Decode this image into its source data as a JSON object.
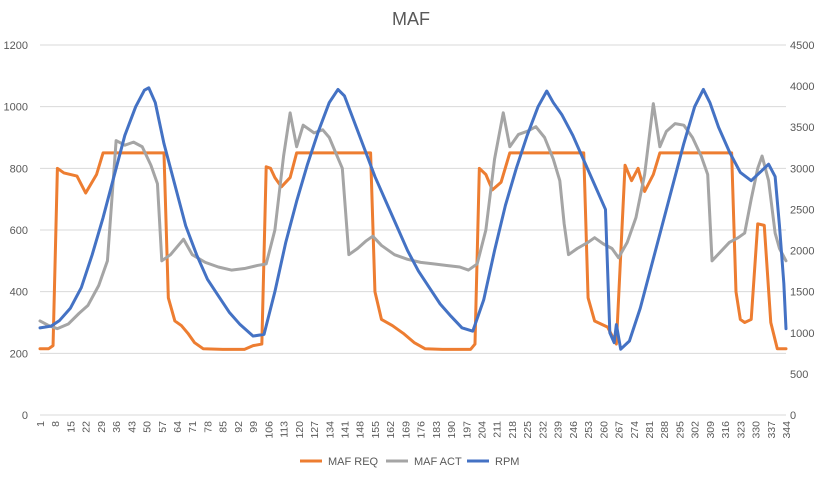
{
  "chart_data": {
    "type": "line",
    "title": "MAF",
    "xlabel": "",
    "ylabel": "",
    "y_left": {
      "lim": [
        0,
        1200
      ],
      "ticks": [
        "0",
        "200",
        "400",
        "600",
        "800",
        "1000",
        "1200"
      ]
    },
    "y_right": {
      "lim": [
        0,
        4500
      ],
      "ticks": [
        "0",
        "500",
        "1000",
        "1500",
        "2000",
        "2500",
        "3000",
        "3500",
        "4000",
        "4500"
      ]
    },
    "x": {
      "lim": [
        1,
        344
      ],
      "step": 7,
      "tick_labels": [
        "1",
        "8",
        "15",
        "22",
        "29",
        "36",
        "43",
        "50",
        "57",
        "64",
        "71",
        "78",
        "85",
        "92",
        "99",
        "106",
        "113",
        "120",
        "127",
        "134",
        "141",
        "148",
        "155",
        "162",
        "169",
        "176",
        "183",
        "190",
        "197",
        "204",
        "211",
        "218",
        "225",
        "232",
        "239",
        "246",
        "253",
        "260",
        "267",
        "274",
        "281",
        "288",
        "295",
        "302",
        "309",
        "316",
        "323",
        "330",
        "337",
        "344"
      ]
    },
    "grid": "horizontal",
    "legend_position": "bottom",
    "series": [
      {
        "name": "MAF REQ",
        "axis": "left",
        "color": "#ED7D31",
        "points": [
          [
            1,
            215
          ],
          [
            5,
            215
          ],
          [
            7,
            225
          ],
          [
            9,
            800
          ],
          [
            12,
            785
          ],
          [
            18,
            775
          ],
          [
            22,
            720
          ],
          [
            27,
            780
          ],
          [
            30,
            850
          ],
          [
            58,
            850
          ],
          [
            60,
            380
          ],
          [
            63,
            305
          ],
          [
            66,
            290
          ],
          [
            69,
            265
          ],
          [
            72,
            235
          ],
          [
            76,
            215
          ],
          [
            85,
            213
          ],
          [
            95,
            213
          ],
          [
            99,
            225
          ],
          [
            103,
            230
          ],
          [
            105,
            805
          ],
          [
            107,
            800
          ],
          [
            109,
            770
          ],
          [
            112,
            740
          ],
          [
            116,
            770
          ],
          [
            119,
            850
          ],
          [
            153,
            850
          ],
          [
            155,
            400
          ],
          [
            158,
            310
          ],
          [
            163,
            290
          ],
          [
            168,
            265
          ],
          [
            173,
            235
          ],
          [
            178,
            215
          ],
          [
            186,
            213
          ],
          [
            199,
            213
          ],
          [
            201,
            230
          ],
          [
            203,
            800
          ],
          [
            206,
            780
          ],
          [
            209,
            730
          ],
          [
            213,
            755
          ],
          [
            217,
            850
          ],
          [
            251,
            850
          ],
          [
            253,
            380
          ],
          [
            256,
            305
          ],
          [
            262,
            285
          ],
          [
            266,
            230
          ],
          [
            270,
            810
          ],
          [
            273,
            760
          ],
          [
            276,
            800
          ],
          [
            279,
            725
          ],
          [
            283,
            780
          ],
          [
            286,
            850
          ],
          [
            319,
            850
          ],
          [
            321,
            400
          ],
          [
            323,
            310
          ],
          [
            325,
            300
          ],
          [
            328,
            310
          ],
          [
            331,
            620
          ],
          [
            334,
            615
          ],
          [
            337,
            300
          ],
          [
            340,
            215
          ],
          [
            344,
            215
          ]
        ]
      },
      {
        "name": "MAF ACT",
        "axis": "left",
        "color": "#A5A5A5",
        "points": [
          [
            1,
            305
          ],
          [
            5,
            290
          ],
          [
            9,
            280
          ],
          [
            14,
            295
          ],
          [
            19,
            330
          ],
          [
            23,
            355
          ],
          [
            28,
            420
          ],
          [
            32,
            500
          ],
          [
            36,
            890
          ],
          [
            40,
            875
          ],
          [
            44,
            885
          ],
          [
            48,
            870
          ],
          [
            52,
            810
          ],
          [
            55,
            750
          ],
          [
            57,
            500
          ],
          [
            61,
            520
          ],
          [
            64,
            545
          ],
          [
            67,
            570
          ],
          [
            71,
            520
          ],
          [
            77,
            495
          ],
          [
            83,
            480
          ],
          [
            89,
            470
          ],
          [
            95,
            475
          ],
          [
            101,
            485
          ],
          [
            105,
            490
          ],
          [
            109,
            600
          ],
          [
            113,
            840
          ],
          [
            116,
            980
          ],
          [
            119,
            870
          ],
          [
            122,
            940
          ],
          [
            127,
            915
          ],
          [
            131,
            925
          ],
          [
            134,
            900
          ],
          [
            137,
            850
          ],
          [
            140,
            800
          ],
          [
            143,
            520
          ],
          [
            147,
            540
          ],
          [
            151,
            565
          ],
          [
            154,
            580
          ],
          [
            158,
            550
          ],
          [
            164,
            520
          ],
          [
            170,
            505
          ],
          [
            176,
            495
          ],
          [
            182,
            490
          ],
          [
            188,
            485
          ],
          [
            194,
            480
          ],
          [
            198,
            470
          ],
          [
            202,
            490
          ],
          [
            206,
            600
          ],
          [
            210,
            830
          ],
          [
            214,
            980
          ],
          [
            217,
            870
          ],
          [
            221,
            910
          ],
          [
            225,
            920
          ],
          [
            229,
            935
          ],
          [
            233,
            900
          ],
          [
            237,
            830
          ],
          [
            240,
            760
          ],
          [
            242,
            620
          ],
          [
            244,
            520
          ],
          [
            248,
            540
          ],
          [
            253,
            560
          ],
          [
            256,
            575
          ],
          [
            260,
            555
          ],
          [
            264,
            540
          ],
          [
            267,
            510
          ],
          [
            271,
            560
          ],
          [
            275,
            640
          ],
          [
            279,
            780
          ],
          [
            283,
            1010
          ],
          [
            286,
            870
          ],
          [
            289,
            920
          ],
          [
            293,
            945
          ],
          [
            297,
            940
          ],
          [
            301,
            900
          ],
          [
            305,
            840
          ],
          [
            308,
            780
          ],
          [
            310,
            500
          ],
          [
            314,
            530
          ],
          [
            318,
            560
          ],
          [
            322,
            575
          ],
          [
            325,
            590
          ],
          [
            328,
            700
          ],
          [
            331,
            800
          ],
          [
            333,
            840
          ],
          [
            336,
            760
          ],
          [
            339,
            590
          ],
          [
            341,
            540
          ],
          [
            344,
            500
          ]
        ]
      },
      {
        "name": "RPM",
        "axis": "right",
        "color": "#4472C4",
        "points": [
          [
            1,
            1060
          ],
          [
            6,
            1080
          ],
          [
            10,
            1150
          ],
          [
            15,
            1300
          ],
          [
            20,
            1550
          ],
          [
            25,
            1950
          ],
          [
            30,
            2400
          ],
          [
            35,
            2900
          ],
          [
            40,
            3400
          ],
          [
            45,
            3750
          ],
          [
            49,
            3950
          ],
          [
            51,
            3980
          ],
          [
            54,
            3800
          ],
          [
            58,
            3300
          ],
          [
            63,
            2800
          ],
          [
            68,
            2300
          ],
          [
            73,
            1950
          ],
          [
            78,
            1650
          ],
          [
            83,
            1450
          ],
          [
            88,
            1250
          ],
          [
            93,
            1100
          ],
          [
            99,
            960
          ],
          [
            104,
            980
          ],
          [
            109,
            1500
          ],
          [
            114,
            2100
          ],
          [
            119,
            2600
          ],
          [
            124,
            3050
          ],
          [
            129,
            3450
          ],
          [
            134,
            3800
          ],
          [
            138,
            3960
          ],
          [
            141,
            3880
          ],
          [
            145,
            3600
          ],
          [
            150,
            3250
          ],
          [
            155,
            2900
          ],
          [
            160,
            2600
          ],
          [
            165,
            2300
          ],
          [
            170,
            2000
          ],
          [
            175,
            1750
          ],
          [
            180,
            1550
          ],
          [
            185,
            1350
          ],
          [
            190,
            1200
          ],
          [
            195,
            1060
          ],
          [
            200,
            1020
          ],
          [
            205,
            1400
          ],
          [
            210,
            2000
          ],
          [
            215,
            2550
          ],
          [
            220,
            3000
          ],
          [
            225,
            3400
          ],
          [
            230,
            3750
          ],
          [
            234,
            3940
          ],
          [
            237,
            3800
          ],
          [
            241,
            3650
          ],
          [
            246,
            3400
          ],
          [
            251,
            3100
          ],
          [
            256,
            2800
          ],
          [
            261,
            2500
          ],
          [
            263,
            1000
          ],
          [
            265,
            880
          ],
          [
            266,
            1100
          ],
          [
            268,
            800
          ],
          [
            272,
            900
          ],
          [
            277,
            1300
          ],
          [
            282,
            1800
          ],
          [
            287,
            2300
          ],
          [
            292,
            2800
          ],
          [
            297,
            3300
          ],
          [
            302,
            3750
          ],
          [
            306,
            3960
          ],
          [
            309,
            3800
          ],
          [
            313,
            3500
          ],
          [
            318,
            3200
          ],
          [
            323,
            2950
          ],
          [
            328,
            2850
          ],
          [
            332,
            2950
          ],
          [
            336,
            3050
          ],
          [
            339,
            2900
          ],
          [
            341,
            2300
          ],
          [
            343,
            1600
          ],
          [
            344,
            1050
          ]
        ]
      }
    ]
  }
}
